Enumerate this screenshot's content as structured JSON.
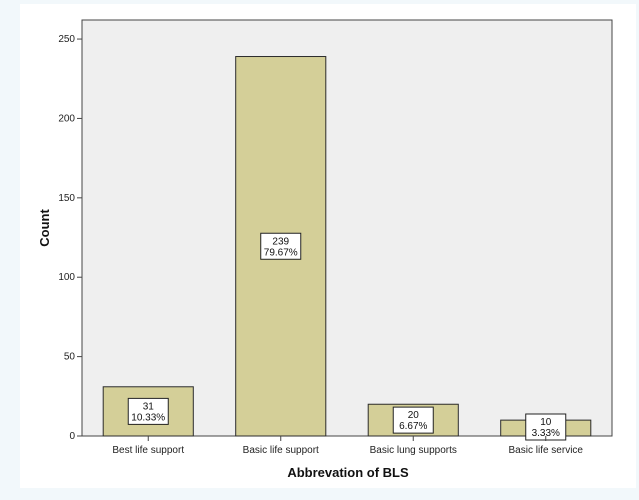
{
  "chart_data": {
    "type": "bar",
    "title": "",
    "xlabel": "Abbrevation of BLS",
    "ylabel": "Count",
    "categories": [
      "Best life support",
      "Basic life support",
      "Basic lung supports",
      "Basic life service"
    ],
    "values": [
      31,
      239,
      20,
      10
    ],
    "percent_labels": [
      "10.33%",
      "79.67%",
      "6.67%",
      "3.33%"
    ],
    "yticks": [
      0,
      50,
      100,
      150,
      200,
      250
    ],
    "ylim": [
      0,
      262
    ],
    "grid": false,
    "legend": "none",
    "colors": {
      "bar_fill": "#d4cf98",
      "bar_stroke": "#2b2b2b",
      "plot_bg": "#efefef",
      "panel_bg": "#ffffff",
      "page_bg": "#f2f8fb"
    }
  }
}
